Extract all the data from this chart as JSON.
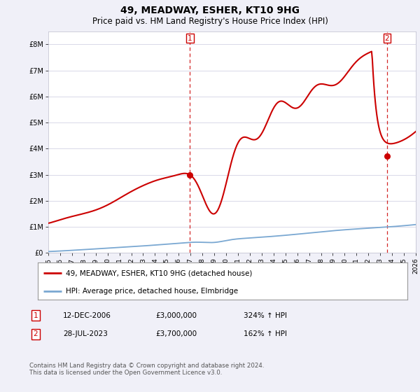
{
  "title": "49, MEADWAY, ESHER, KT10 9HG",
  "subtitle": "Price paid vs. HM Land Registry's House Price Index (HPI)",
  "ylim": [
    0,
    8500000
  ],
  "yticks": [
    0,
    1000000,
    2000000,
    3000000,
    4000000,
    5000000,
    6000000,
    7000000,
    8000000
  ],
  "ytick_labels": [
    "£0",
    "£1M",
    "£2M",
    "£3M",
    "£4M",
    "£5M",
    "£6M",
    "£7M",
    "£8M"
  ],
  "hpi_color": "#7aa8d2",
  "price_color": "#cc0000",
  "marker_color": "#cc0000",
  "vline_color": "#cc0000",
  "grid_color": "#d8d8e8",
  "background_color": "#f0f0f8",
  "plot_bg_color": "#ffffff",
  "sale1_date": 2006.95,
  "sale1_price": 3000000,
  "sale1_label": "1",
  "sale2_date": 2023.57,
  "sale2_price": 3700000,
  "sale2_label": "2",
  "legend_label_price": "49, MEADWAY, ESHER, KT10 9HG (detached house)",
  "legend_label_hpi": "HPI: Average price, detached house, Elmbridge",
  "table_row1": [
    "1",
    "12-DEC-2006",
    "£3,000,000",
    "324% ↑ HPI"
  ],
  "table_row2": [
    "2",
    "28-JUL-2023",
    "£3,700,000",
    "162% ↑ HPI"
  ],
  "footnote": "Contains HM Land Registry data © Crown copyright and database right 2024.\nThis data is licensed under the Open Government Licence v3.0.",
  "xmin": 1995,
  "xmax": 2026,
  "title_fontsize": 10,
  "subtitle_fontsize": 8.5,
  "tick_fontsize": 7,
  "legend_fontsize": 7.5
}
